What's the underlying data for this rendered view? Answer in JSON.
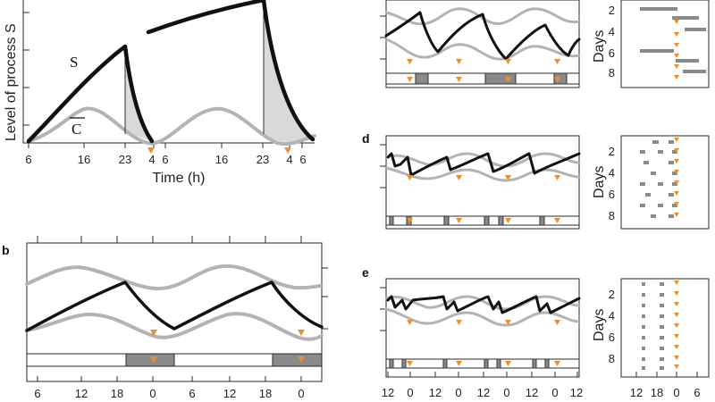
{
  "figure": {
    "panels": {
      "a": {
        "y_axis_label": "Level of process S",
        "x_axis_label": "Time (h)",
        "x_ticks": [
          "6",
          "16",
          "23",
          "4",
          "6",
          "16",
          "23",
          "4",
          "6"
        ],
        "curve_s_label": "S",
        "curve_c_label": "C"
      },
      "b": {
        "label": "b",
        "x_ticks": [
          "6",
          "12",
          "18",
          "0",
          "6",
          "12",
          "18",
          "0"
        ]
      },
      "c": {
        "y_axis_label": "Days",
        "y_ticks": [
          "2",
          "4",
          "6",
          "8"
        ]
      },
      "d": {
        "label": "d",
        "y_axis_label": "Days",
        "y_ticks": [
          "2",
          "4",
          "6",
          "8"
        ]
      },
      "e": {
        "label": "e",
        "y_axis_label": "Days",
        "y_ticks": [
          "2",
          "4",
          "6",
          "8"
        ],
        "x_ticks": [
          "12",
          "0",
          "12",
          "0",
          "12",
          "0",
          "12",
          "0",
          "12"
        ],
        "raster_x_ticks": [
          "12",
          "18",
          "0",
          "6"
        ]
      }
    },
    "colors": {
      "sleep_pressure": "#111111",
      "circadian": "#b3b3b3",
      "marker": "#e8912d",
      "sleep_bar": "#8a8a8a"
    }
  }
}
